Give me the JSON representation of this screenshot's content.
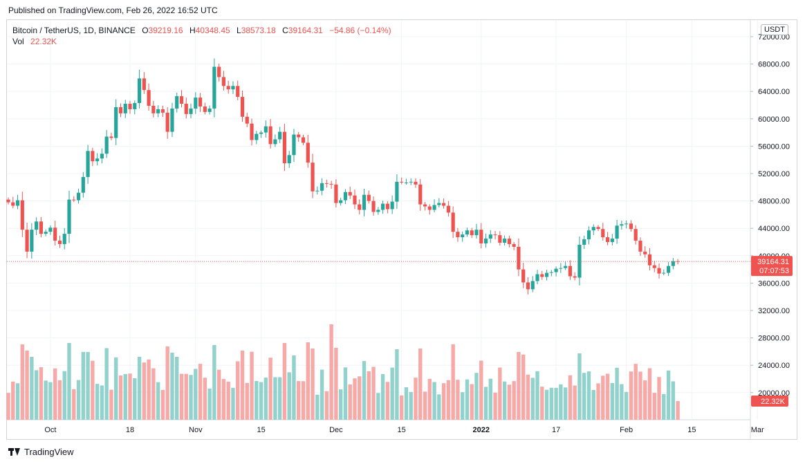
{
  "header": {
    "published": "Published on TradingView.com, Feb 26, 2022 16:52 UTC"
  },
  "legend": {
    "symbol": "Bitcoin / TetherUS, 1D, BINANCE",
    "open_label": "O",
    "open": "39219.16",
    "high_label": "H",
    "high": "40348.45",
    "low_label": "L",
    "low": "38573.18",
    "close_label": "C",
    "close": "39164.31",
    "change": "−54.86 (−0.14%)",
    "vol_label": "Vol",
    "vol": "22.32K"
  },
  "currency_button": "USDT",
  "footer": {
    "brand": "TradingView"
  },
  "colors": {
    "up": "#26a69a",
    "down": "#ef5350",
    "up_vol": "#92d2cc",
    "down_vol": "#f7a9a7",
    "grid": "#f0f3fa"
  },
  "chart_data": {
    "type": "candlestick",
    "yticks": [
      "72000.00",
      "68000.00",
      "64000.00",
      "60000.00",
      "56000.00",
      "52000.00",
      "48000.00",
      "44000.00",
      "40000.00",
      "36000.00",
      "32000.00",
      "28000.00",
      "24000.00",
      "20000.00"
    ],
    "price_range": [
      30000,
      74000
    ],
    "xticks": [
      {
        "label": "Oct",
        "index": 9
      },
      {
        "label": "18",
        "index": 26
      },
      {
        "label": "Nov",
        "index": 40
      },
      {
        "label": "15",
        "index": 54
      },
      {
        "label": "Dec",
        "index": 70
      },
      {
        "label": "15",
        "index": 84
      },
      {
        "label": "2022",
        "index": 101
      },
      {
        "label": "17",
        "index": 117
      },
      {
        "label": "Feb",
        "index": 132
      },
      {
        "label": "15",
        "index": 146
      },
      {
        "label": "Mar",
        "index": 160
      }
    ],
    "last_price": "39164.31",
    "countdown": "07:07:53",
    "last_volume": "22.32K",
    "closes": [
      47800,
      47300,
      48100,
      43800,
      40600,
      43800,
      45000,
      43200,
      43500,
      44100,
      42200,
      41700,
      43200,
      48200,
      48100,
      49200,
      51500,
      55300,
      53800,
      54200,
      54900,
      57400,
      57200,
      61700,
      60800,
      62200,
      61400,
      62300,
      65900,
      64200,
      61900,
      60800,
      61400,
      60900,
      58100,
      61500,
      63300,
      62200,
      60700,
      61500,
      63100,
      61800,
      61000,
      61500,
      67600,
      66100,
      64800,
      64300,
      64800,
      63200,
      60300,
      59300,
      56900,
      57800,
      58000,
      58900,
      56300,
      57000,
      58100,
      53500,
      54700,
      57700,
      57300,
      56500,
      53600,
      49400,
      49500,
      50600,
      50500,
      50400,
      47700,
      48100,
      49300,
      48800,
      47500,
      46700,
      48900,
      48000,
      46400,
      46700,
      47600,
      46800,
      47900,
      50800,
      50700,
      50700,
      50800,
      50400,
      47500,
      47200,
      46700,
      47400,
      47700,
      47300,
      46300,
      43500,
      42700,
      43100,
      43700,
      43000,
      43800,
      41800,
      42500,
      43100,
      43000,
      41900,
      42500,
      41700,
      41300,
      38000,
      36100,
      35100,
      36300,
      37300,
      36900,
      37500,
      37600,
      38100,
      38200,
      38500,
      37000,
      36800,
      41600,
      42400,
      43700,
      44200,
      43900,
      42700,
      42000,
      42500,
      44400,
      44600,
      44700,
      43900,
      42200,
      40600,
      40200,
      38600,
      38200,
      37400,
      37500,
      38500,
      39200,
      39164
    ]
  }
}
